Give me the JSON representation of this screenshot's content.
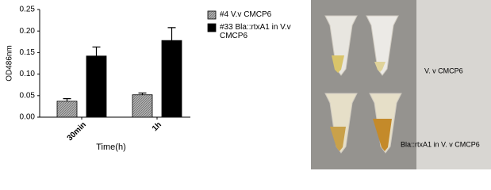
{
  "chart_data": {
    "type": "bar",
    "ylabel": "OD486nm",
    "xlabel": "Time(h)",
    "categories": [
      "30min",
      "1h"
    ],
    "series": [
      {
        "name": "#4 V.v CMCP6",
        "color": "#9a9a9a",
        "values": [
          0.037,
          0.052
        ],
        "errors": [
          0.006,
          0.004
        ]
      },
      {
        "name": "#33 Bla::rtxA1 in V.v CMCP6",
        "color": "#000000",
        "values": [
          0.142,
          0.178
        ],
        "errors": [
          0.021,
          0.03
        ]
      }
    ],
    "ylim": [
      0,
      0.25
    ],
    "yticks": [
      {
        "value": 0,
        "label": "0.00"
      },
      {
        "value": 0.05,
        "label": "0.05"
      },
      {
        "value": 0.1,
        "label": "0.10"
      },
      {
        "value": 0.15,
        "label": "0.15"
      },
      {
        "value": 0.2,
        "label": "0.20"
      },
      {
        "value": 0.25,
        "label": "0.25"
      }
    ]
  },
  "image": {
    "labels": [
      "V. v CMCP6",
      "Bla::rtxA1 in V. v CMCP6"
    ]
  }
}
